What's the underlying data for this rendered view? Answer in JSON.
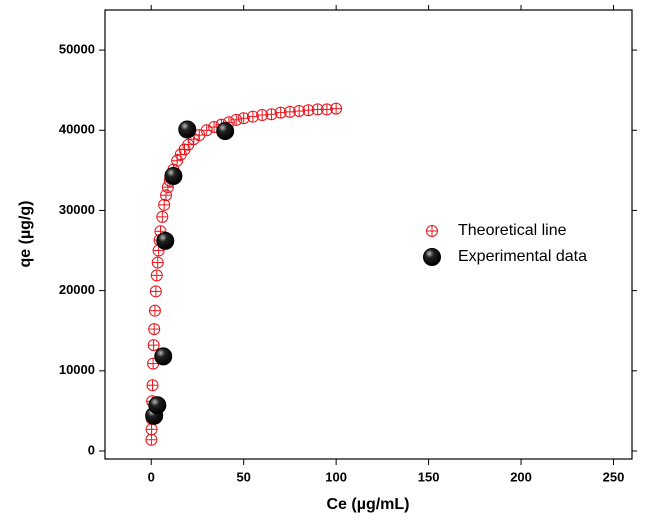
{
  "chart_data": {
    "type": "scatter",
    "x_label": "Ce (µg/mL)",
    "y_label": "qe (µg/g)",
    "xlim": [
      -25,
      260
    ],
    "ylim": [
      -1000,
      55000
    ],
    "xticks": [
      0,
      50,
      100,
      150,
      200,
      250
    ],
    "yticks": [
      0,
      10000,
      20000,
      30000,
      40000,
      50000
    ],
    "legend": "right",
    "series": [
      {
        "name": "Theoretical line",
        "color": "#e8141b",
        "marker": "crossed-circle",
        "x": [
          0.1,
          0.2,
          0.3,
          0.5,
          0.7,
          1,
          1.3,
          1.6,
          2,
          2.5,
          3,
          3.5,
          4,
          4.5,
          5,
          6,
          7,
          8,
          9,
          10,
          12,
          14,
          16,
          18,
          20,
          23,
          26,
          30,
          34,
          38,
          42,
          46,
          50,
          55,
          60,
          65,
          70,
          75,
          80,
          85,
          90,
          95,
          100
        ],
        "values": [
          1400,
          2700,
          4000,
          6200,
          8200,
          10900,
          13200,
          15200,
          17500,
          19900,
          21900,
          23500,
          25000,
          26300,
          27400,
          29200,
          30700,
          31900,
          32900,
          33700,
          35100,
          36200,
          37000,
          37600,
          38200,
          38900,
          39400,
          40000,
          40400,
          40700,
          41000,
          41300,
          41500,
          41700,
          41900,
          42000,
          42200,
          42300,
          42400,
          42500,
          42600,
          42600,
          42700
        ]
      },
      {
        "name": "Experimental data",
        "color": "#000000",
        "marker": "ball",
        "x": [
          1.6,
          3.3,
          6.5,
          7.6,
          12,
          19.5,
          40
        ],
        "values": [
          4400,
          5700,
          11800,
          26200,
          34300,
          40100,
          39900
        ]
      }
    ]
  }
}
